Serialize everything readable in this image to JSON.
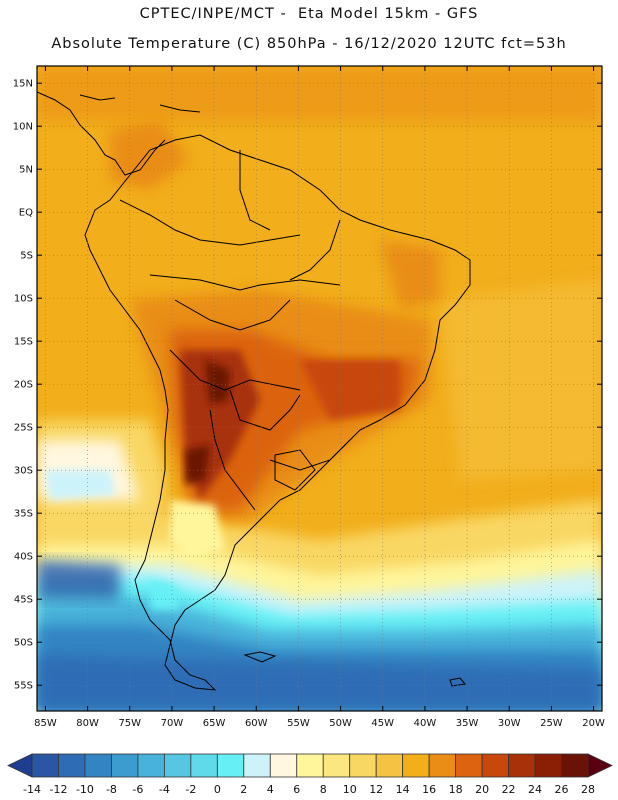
{
  "header": {
    "line1": "CPTEC/INPE/MCT -  Eta Model 15km - GFS",
    "line2": "Absolute Temperature (C) 850hPa - 16/12/2020 12UTC fct=53h"
  },
  "axes": {
    "lat_labels": [
      "15N",
      "10N",
      "5N",
      "EQ",
      "5S",
      "10S",
      "15S",
      "20S",
      "25S",
      "30S",
      "35S",
      "40S",
      "45S",
      "50S",
      "55S"
    ],
    "lat_values": [
      15,
      10,
      5,
      0,
      -5,
      -10,
      -15,
      -20,
      -25,
      -30,
      -35,
      -40,
      -45,
      -50,
      -55
    ],
    "lon_labels": [
      "85W",
      "80W",
      "75W",
      "70W",
      "65W",
      "60W",
      "55W",
      "50W",
      "45W",
      "40W",
      "35W",
      "30W",
      "25W",
      "20W"
    ],
    "lon_values": [
      -85,
      -80,
      -75,
      -70,
      -65,
      -60,
      -55,
      -50,
      -45,
      -40,
      -35,
      -30,
      -25,
      -20
    ],
    "lon_range": [
      -86,
      -19
    ],
    "lat_range": [
      -58,
      17
    ]
  },
  "colorbar": {
    "labels": [
      "-14",
      "-12",
      "-10",
      "-8",
      "-6",
      "-4",
      "-2",
      "0",
      "2",
      "4",
      "6",
      "8",
      "10",
      "12",
      "14",
      "16",
      "18",
      "20",
      "22",
      "24",
      "26",
      "28"
    ],
    "colors": [
      "#1f3d91",
      "#2a56a3",
      "#2e6db5",
      "#3284c2",
      "#3a9ccf",
      "#48b2da",
      "#56c6e3",
      "#5fdaea",
      "#66f0f5",
      "#cdf3fa",
      "#fff7e0",
      "#fff59b",
      "#fce680",
      "#f9d763",
      "#f5c243",
      "#f2ae1b",
      "#e98d16",
      "#dc6410",
      "#c8470b",
      "#a83108",
      "#8a1f06",
      "#6b1206",
      "#5a0010"
    ]
  }
}
